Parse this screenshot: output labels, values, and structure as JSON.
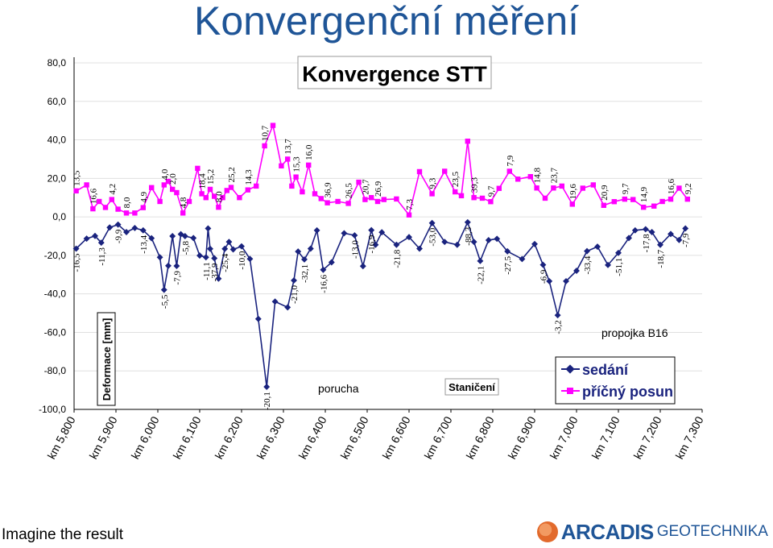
{
  "page": {
    "slide_title": "Konvergenční měření",
    "caption": "Imagine the result",
    "logo_name": "ARCADIS",
    "logo_sub": "GEOTECHNIKA"
  },
  "colors": {
    "sedani": "#1a237e",
    "pricny_posun": "#ff00ff",
    "title": "#1f5597"
  },
  "chart_data": {
    "type": "line",
    "title": "Konvergence STT",
    "ylabel": "Deformace [mm]",
    "xlabel": "Staničení",
    "ylim": [
      -100,
      80
    ],
    "yticks": [
      "80,0",
      "60,0",
      "40,0",
      "20,0",
      "0,0",
      "-20,0",
      "-40,0",
      "-60,0",
      "-80,0",
      "-100,0"
    ],
    "ytick_values": [
      80,
      60,
      40,
      20,
      0,
      -20,
      -40,
      -60,
      -80,
      -100
    ],
    "x_tick_labels": [
      "km 5,800",
      "km 5,900",
      "km 6,000",
      "km 6,100",
      "km 6,200",
      "km 6,300",
      "km 6,400",
      "km 6,500",
      "km 6,600",
      "km 6,700",
      "km 6,800",
      "km 6,900",
      "km 7,000",
      "km 7,100",
      "km 7,200",
      "km 7,300"
    ],
    "x_tick_values": [
      5.8,
      5.9,
      6.0,
      6.1,
      6.2,
      6.3,
      6.4,
      6.5,
      6.6,
      6.7,
      6.8,
      6.9,
      7.0,
      7.1,
      7.2,
      7.3
    ],
    "xlim": [
      5.8,
      7.3
    ],
    "grid": "horizontal",
    "legend_position": "bottom-right",
    "annotations": [
      "porucha",
      "propojka B16"
    ],
    "series": [
      {
        "name": "sedání",
        "x": [
          5.805,
          5.83,
          5.85,
          5.865,
          5.885,
          5.905,
          5.925,
          5.945,
          5.965,
          5.985,
          6.005,
          6.015,
          6.025,
          6.035,
          6.045,
          6.055,
          6.065,
          6.085,
          6.1,
          6.115,
          6.12,
          6.125,
          6.135,
          6.145,
          6.16,
          6.17,
          6.18,
          6.2,
          6.22,
          6.24,
          6.26,
          6.28,
          6.31,
          6.325,
          6.335,
          6.35,
          6.365,
          6.38,
          6.395,
          6.415,
          6.445,
          6.47,
          6.49,
          6.51,
          6.52,
          6.535,
          6.57,
          6.6,
          6.625,
          6.655,
          6.685,
          6.715,
          6.74,
          6.755,
          6.77,
          6.79,
          6.81,
          6.835,
          6.87,
          6.9,
          6.92,
          6.935,
          6.955,
          6.975,
          7.0,
          7.025,
          7.05,
          7.075,
          7.1,
          7.125,
          7.14,
          7.165,
          7.18,
          7.2,
          7.225,
          7.245,
          7.26
        ],
        "values": [
          -16.5,
          -11.3,
          -9.9,
          -13.4,
          -5.5,
          -4.0,
          -7.9,
          -5.8,
          -7.0,
          -11.1,
          -21.0,
          -37.9,
          -25.4,
          -10.0,
          -25.5,
          -9.0,
          -10.0,
          -11.0,
          -20.1,
          -21.0,
          -6.0,
          -16.6,
          -21.5,
          -32.1,
          -16.6,
          -13.0,
          -16.9,
          -15.3,
          -21.8,
          -53.0,
          -88.3,
          -44.0,
          -47.0,
          -33.0,
          -18.0,
          -22.1,
          -16.5,
          -7.0,
          -27.5,
          -23.6,
          -8.5,
          -9.6,
          -25.6,
          -6.9,
          -14.5,
          -8.0,
          -14.5,
          -10.5,
          -16.5,
          -3.2,
          -13.0,
          -14.5,
          -2.8,
          -13.0,
          -22.9,
          -12.1,
          -11.4,
          -17.9,
          -21.9,
          -14.1,
          -24.9,
          -33.4,
          -51.1,
          -33.4,
          -28.0,
          -17.8,
          -15.5,
          -25.0,
          -18.7,
          -11.0,
          -7.0,
          -6.4,
          -7.9,
          -14.5,
          -8.9,
          -12.0,
          -6.0
        ]
      },
      {
        "name": "příčný posun",
        "x": [
          5.805,
          5.83,
          5.845,
          5.86,
          5.875,
          5.89,
          5.905,
          5.925,
          5.945,
          5.965,
          5.985,
          6.005,
          6.015,
          6.025,
          6.035,
          6.045,
          6.06,
          6.075,
          6.095,
          6.105,
          6.115,
          6.125,
          6.135,
          6.145,
          6.155,
          6.165,
          6.175,
          6.195,
          6.215,
          6.235,
          6.255,
          6.275,
          6.295,
          6.31,
          6.32,
          6.33,
          6.345,
          6.36,
          6.375,
          6.39,
          6.405,
          6.43,
          6.455,
          6.48,
          6.495,
          6.51,
          6.525,
          6.54,
          6.57,
          6.6,
          6.625,
          6.655,
          6.685,
          6.71,
          6.725,
          6.74,
          6.755,
          6.775,
          6.795,
          6.815,
          6.84,
          6.86,
          6.89,
          6.905,
          6.925,
          6.945,
          6.965,
          6.99,
          7.015,
          7.04,
          7.065,
          7.09,
          7.115,
          7.135,
          7.16,
          7.185,
          7.205,
          7.225,
          7.245,
          7.265
        ],
        "values": [
          13.5,
          16.6,
          4.2,
          8.0,
          4.9,
          9.0,
          4.0,
          2.0,
          2.0,
          4.8,
          15.2,
          8.0,
          16.6,
          18.4,
          14.3,
          12.6,
          2.0,
          8.0,
          25.2,
          12.0,
          10.0,
          14.3,
          10.7,
          5.0,
          10.0,
          13.7,
          15.3,
          10.0,
          14.0,
          16.0,
          36.9,
          47.5,
          26.5,
          30.0,
          16.0,
          20.7,
          13.0,
          26.9,
          12.0,
          9.5,
          7.3,
          8.0,
          7.0,
          18.0,
          9.0,
          10.0,
          8.0,
          9.0,
          9.3,
          1.0,
          23.5,
          12.0,
          23.7,
          13.0,
          11.0,
          39.3,
          10.0,
          9.7,
          7.9,
          14.8,
          23.7,
          19.6,
          20.9,
          15.0,
          9.7,
          15.0,
          16.0,
          6.6,
          14.9,
          16.6,
          6.0,
          7.9,
          9.2,
          9.0,
          5.0,
          5.6,
          8.0,
          9.2,
          14.9,
          9.2
        ]
      }
    ],
    "point_labels_sedani": [
      "-16,5",
      "-11,3",
      "-9,9",
      "-13,4",
      "-5,5",
      "-7,9",
      "-5,8",
      "-11,1",
      "-37,9",
      "-25,4",
      "-10,0",
      "-20,1",
      "-21,0",
      "-32,1",
      "-16,6",
      "-13,0",
      "-16,9",
      "-21,8",
      "-53,0",
      "-88,3",
      "-22,1",
      "-27,5",
      "-6,9",
      "-3,2",
      "-33,4",
      "-51,1",
      "-17,8",
      "-18,7",
      "-7,9"
    ],
    "point_labels_pricny": [
      "13,5",
      "16,6",
      "4,2",
      "8,0",
      "4,9",
      "4,0",
      "2,0",
      "4,8",
      "18,4",
      "15,2",
      "8,0",
      "25,2",
      "14,3",
      "10,7",
      "13,7",
      "15,3",
      "16,0",
      "36,9",
      "26,5",
      "20,7",
      "26,9",
      "7,3",
      "9,3",
      "23,5",
      "39,3",
      "9,7",
      "7,9",
      "14,8",
      "23,7",
      "19,6",
      "20,9",
      "9,7",
      "14,9",
      "16,6",
      "9,2"
    ]
  }
}
